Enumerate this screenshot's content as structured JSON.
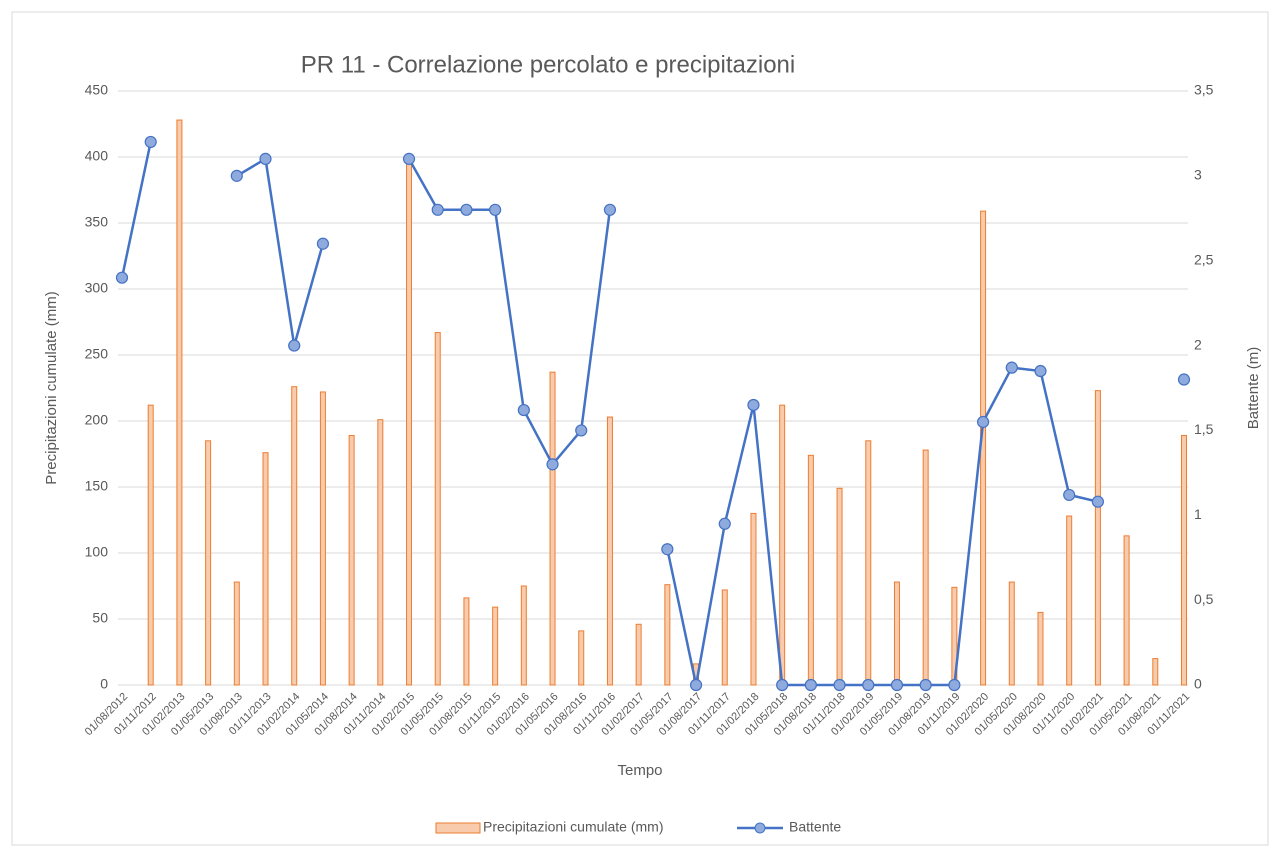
{
  "chart_data": {
    "type": "bar_line",
    "title": "PR 11 - Correlazione  percolato e precipitazioni",
    "x_label": "Tempo",
    "y_label": "Precipitazioni cumulate (mm)",
    "y2_label": "Battente (m)",
    "categories": [
      "01/08/2012",
      "01/11/2012",
      "01/02/2013",
      "01/05/2013",
      "01/08/2013",
      "01/11/2013",
      "01/02/2014",
      "01/05/2014",
      "01/08/2014",
      "01/11/2014",
      "01/02/2015",
      "01/05/2015",
      "01/08/2015",
      "01/11/2015",
      "01/02/2016",
      "01/05/2016",
      "01/08/2016",
      "01/11/2016",
      "01/02/2017",
      "01/05/2017",
      "01/08/2017",
      "01/11/2017",
      "01/02/2018",
      "01/05/2018",
      "01/08/2018",
      "01/11/2018",
      "01/02/2019",
      "01/05/2019",
      "01/08/2019",
      "01/11/2019",
      "01/02/2020",
      "01/05/2020",
      "01/08/2020",
      "01/11/2020",
      "01/02/2021",
      "01/05/2021",
      "01/08/2021",
      "01/11/2021"
    ],
    "series": [
      {
        "name": "Precipitazioni cumulate (mm)",
        "type": "bar",
        "color": "#ed7d31",
        "fill": "#f8cbad",
        "values": [
          null,
          212,
          428,
          185,
          78,
          176,
          226,
          222,
          189,
          201,
          398,
          267,
          66,
          59,
          75,
          237,
          41,
          203,
          46,
          76,
          16,
          72,
          130,
          212,
          174,
          149,
          185,
          78,
          178,
          74,
          359,
          78,
          55,
          128,
          223,
          113,
          20,
          189
        ]
      },
      {
        "name": "Battente",
        "type": "line",
        "axis": "y2",
        "color": "#4472c4",
        "marker_fill": "#8faadc",
        "values": [
          2.4,
          3.2,
          null,
          null,
          3.0,
          3.1,
          2.0,
          2.6,
          null,
          null,
          3.1,
          2.8,
          2.8,
          2.8,
          1.62,
          1.3,
          1.5,
          2.8,
          null,
          0.8,
          0,
          0.95,
          1.65,
          0,
          0,
          0,
          0,
          0,
          0,
          0,
          1.55,
          1.87,
          1.85,
          1.12,
          1.08,
          null,
          null,
          1.8
        ]
      }
    ],
    "ylim": [
      0,
      450
    ],
    "yticks": [
      0,
      50,
      100,
      150,
      200,
      250,
      300,
      350,
      400,
      450
    ],
    "y2lim": [
      0,
      3.5
    ],
    "y2ticks": [
      0,
      {
        "value": 0.5,
        "label": "0,5"
      },
      1,
      {
        "value": 1.5,
        "label": "1,5"
      },
      2,
      {
        "value": 2.5,
        "label": "2,5"
      },
      3,
      {
        "value": 3.5,
        "label": "3,5"
      }
    ],
    "grid": true,
    "legend": "bottom"
  }
}
